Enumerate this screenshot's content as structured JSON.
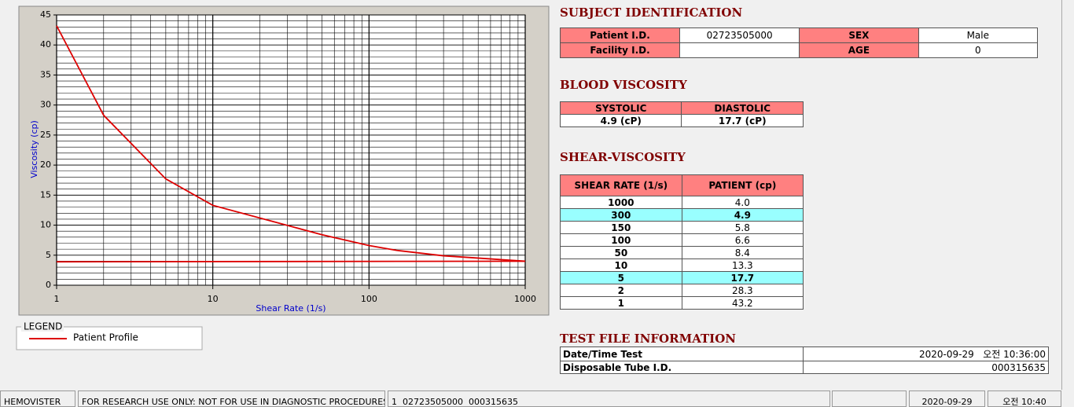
{
  "chart_data": {
    "type": "line",
    "xlabel": "Shear Rate (1/s)",
    "ylabel": "Viscosity (cp)",
    "xlim": [
      1,
      1000
    ],
    "xlog": true,
    "xticks": [
      1,
      10,
      100,
      1000
    ],
    "ylim": [
      0,
      45
    ],
    "yticks": [
      0,
      5,
      10,
      15,
      20,
      25,
      30,
      35,
      40,
      45
    ],
    "grid": true,
    "minor_grid": true,
    "series": [
      {
        "name": "Patient Profile",
        "color": "#dd0000",
        "x": [
          1,
          2,
          5,
          10,
          50,
          100,
          150,
          300,
          1000
        ],
        "values": [
          43.2,
          28.3,
          17.7,
          13.3,
          8.4,
          6.6,
          5.8,
          4.9,
          4.0
        ]
      },
      {
        "color": "#dd0000",
        "x": [
          1,
          1000
        ],
        "values": [
          3.9,
          4.0
        ]
      }
    ]
  },
  "legend": {
    "title": "LEGEND"
  },
  "subject": {
    "title": "SUBJECT IDENTIFICATION",
    "fields": [
      {
        "label": "Patient I.D.",
        "value": "02723505000"
      },
      {
        "label": "SEX",
        "value": "Male"
      },
      {
        "label": "Facility I.D."
      },
      {
        "label": "AGE",
        "value": "0"
      }
    ]
  },
  "blood": {
    "title": "BLOOD VISCOSITY",
    "headers": [
      "SYSTOLIC",
      "DIASTOLIC"
    ],
    "values": [
      "4.9 (cP)",
      "17.7 (cP)"
    ]
  },
  "shear": {
    "title": "SHEAR-VISCOSITY",
    "headers": [
      "SHEAR RATE (1/s)",
      "PATIENT (cp)"
    ],
    "rows": [
      {
        "cells": [
          "1000",
          "4.0"
        ]
      },
      {
        "cells": [
          "300",
          "4.9"
        ],
        "highlight": true
      },
      {
        "cells": [
          "150",
          "5.8"
        ]
      },
      {
        "cells": [
          "100",
          "6.6"
        ]
      },
      {
        "cells": [
          "50",
          "8.4"
        ]
      },
      {
        "cells": [
          "10",
          "13.3"
        ]
      },
      {
        "cells": [
          "5",
          "17.7"
        ],
        "highlight": true
      },
      {
        "cells": [
          "2",
          "28.3"
        ]
      },
      {
        "cells": [
          "1",
          "43.2"
        ]
      }
    ]
  },
  "test_file": {
    "title": "TEST FILE INFORMATION",
    "rows": [
      [
        "Date/Time Test",
        "2020-09-29   오전 10:36:00"
      ],
      [
        "Disposable Tube I.D.",
        "000315635"
      ]
    ]
  },
  "status_bar": [
    "HEMOVISTER",
    "FOR RESEARCH USE ONLY: NOT FOR USE IN DIAGNOSTIC PROCEDURES",
    "1  02723505000  000315635",
    "2020-09-29",
    "오전 10:40"
  ]
}
